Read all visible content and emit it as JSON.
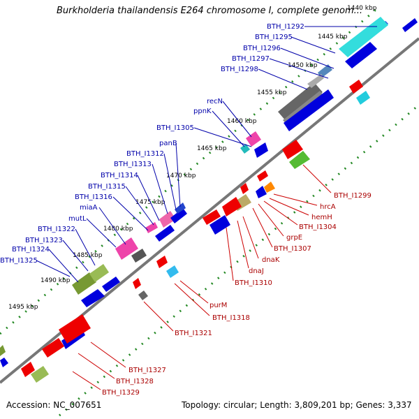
{
  "title": "Burkholderia thailandensis E264 chromosome I, complete genom...",
  "footer": {
    "accession": "Accession: NC_007651",
    "topology": "Topology: circular; Length: 3,809,201 bp; Genes: 3,337"
  },
  "kbp_labels": [
    "1440 kbp",
    "1445 kbp",
    "1450 kbp",
    "1455 kbp",
    "1460 kbp",
    "1465 kbp",
    "1470 kbp",
    "1475 kbp",
    "1480 kbp",
    "1485 kbp",
    "1490 kbp",
    "1495 kbp"
  ],
  "blue_labels": [
    "BTH_I1292",
    "BTH_I1295",
    "BTH_I1296",
    "BTH_I1297",
    "BTH_I1298",
    "recN",
    "ppnK",
    "BTH_I1305",
    "panB",
    "BTH_I1312",
    "BTH_I1313",
    "BTH_I1314",
    "BTH_I1315",
    "BTH_I1316",
    "miaA",
    "mutL",
    "BTH_I1322",
    "BTH_I1323",
    "BTH_I1324",
    "BTH_I1325"
  ],
  "red_labels": [
    "BTH_I1299",
    "hrcA",
    "hemH",
    "BTH_I1304",
    "grpE",
    "BTH_I1307",
    "dnaK",
    "dnaJ",
    "BTH_I1310",
    "purM",
    "BTH_I1318",
    "BTH_I1321",
    "BTH_I1327",
    "BTH_I1328",
    "BTH_I1329"
  ],
  "colors": {
    "backbone": "#777777",
    "tick": "#228822",
    "forward_gene": "#0000dd",
    "reverse_gene": "#ee0000",
    "blue_label": "#0000aa",
    "red_label": "#aa0000"
  }
}
